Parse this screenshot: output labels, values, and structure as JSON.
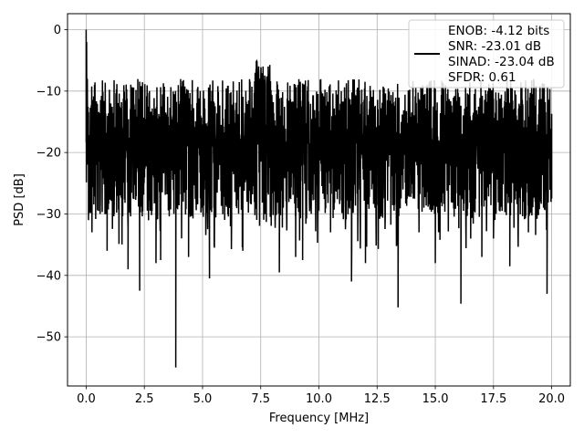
{
  "chart_data": {
    "type": "line",
    "title": "",
    "xlabel": "Frequency [MHz]",
    "ylabel": "PSD [dB]",
    "xlim": [
      -0.8,
      20.8
    ],
    "ylim": [
      -58,
      2.6
    ],
    "xticks": [
      0.0,
      2.5,
      5.0,
      7.5,
      10.0,
      12.5,
      15.0,
      17.5,
      20.0
    ],
    "xtick_labels": [
      "0.0",
      "2.5",
      "5.0",
      "7.5",
      "10.0",
      "12.5",
      "15.0",
      "17.5",
      "20.0"
    ],
    "yticks": [
      0,
      -10,
      -20,
      -30,
      -40,
      -50
    ],
    "ytick_labels": [
      "0",
      "−10",
      "−20",
      "−30",
      "−40",
      "−50"
    ],
    "grid": true,
    "legend_position": "top-right",
    "series": [
      {
        "name": "ENOB: -4.12 bits\nSNR: -23.01 dB\nSINAD: -23.04 dB\nSFDR: 0.61",
        "legend_lines": [
          "ENOB: -4.12 bits",
          "SNR: -23.01 dB",
          "SINAD: -23.04 dB",
          "SFDR: 0.61"
        ],
        "color": "#000000",
        "description_points": {
          "x": [
            0.0,
            0.02,
            0.05,
            0.08,
            0.1,
            0.25,
            0.6,
            0.9,
            1.2,
            1.8,
            2.3,
            3.0,
            3.2,
            3.85,
            4.4,
            5.3,
            5.5,
            6.2,
            7.3,
            7.6,
            8.3,
            9.0,
            9.3,
            10.5,
            11.4,
            12.0,
            13.4,
            14.3,
            15.0,
            16.1,
            17.0,
            17.5,
            18.2,
            19.0,
            19.8,
            20.0
          ],
          "y": [
            0.0,
            -2.0,
            -8.0,
            -20.0,
            -31.0,
            -33.0,
            -30.0,
            -36.0,
            -30.0,
            -39.0,
            -42.5,
            -38.0,
            -37.5,
            -55.0,
            -37.0,
            -40.5,
            -35.0,
            -32.0,
            -22.0,
            -6.0,
            -39.5,
            -37.0,
            -37.5,
            -33.0,
            -41.0,
            -38.0,
            -45.2,
            -33.0,
            -38.0,
            -44.6,
            -37.0,
            -34.0,
            -38.5,
            -33.0,
            -43.0,
            -27.5
          ]
        }
      }
    ]
  }
}
